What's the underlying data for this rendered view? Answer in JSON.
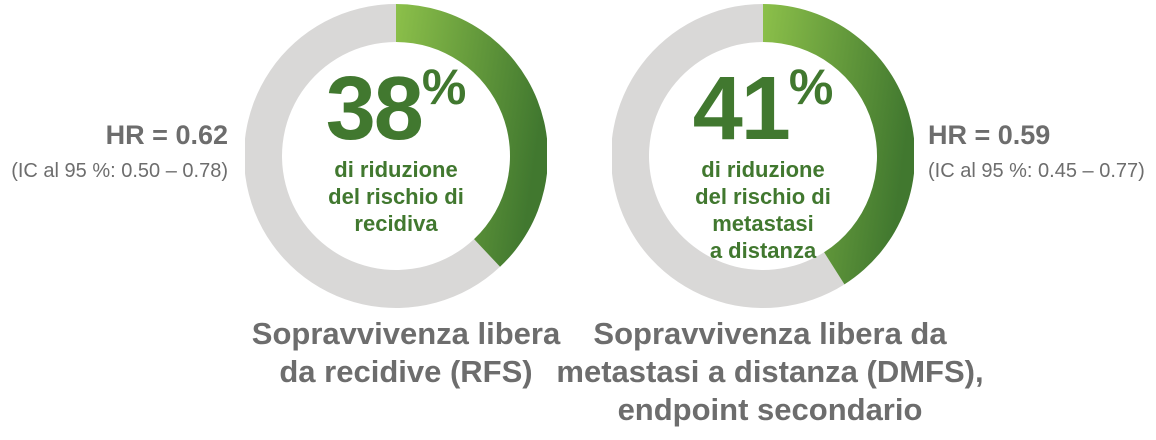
{
  "chart_data": [
    {
      "type": "pie",
      "variant": "donut",
      "values": [
        38,
        62
      ],
      "highlight_percent": 38,
      "percent_label": "38",
      "percent_sign": "%",
      "description": [
        "di riduzione",
        "del rischio di",
        "recidiva"
      ],
      "hr": "HR = 0.62",
      "ci": "(IC al 95 %: 0.50 – 0.78)",
      "caption": [
        "Sopravvivenza libera",
        "da recidive (RFS)"
      ]
    },
    {
      "type": "pie",
      "variant": "donut",
      "values": [
        41,
        59
      ],
      "highlight_percent": 41,
      "percent_label": "41",
      "percent_sign": "%",
      "description": [
        "di riduzione",
        "del rischio di",
        "metastasi",
        "a distanza"
      ],
      "hr": "HR = 0.59",
      "ci": "(IC al 95 %: 0.45 – 0.77)",
      "caption": [
        "Sopravvivenza libera da",
        "metastasi a distanza (DMFS),",
        "endpoint secondario"
      ]
    }
  ],
  "colors": {
    "highlight_start": "#8cc04a",
    "highlight_end": "#41782f",
    "remainder": "#d9d8d7",
    "headline_text": "#41782f",
    "grey_text": "#6d6d6d"
  }
}
